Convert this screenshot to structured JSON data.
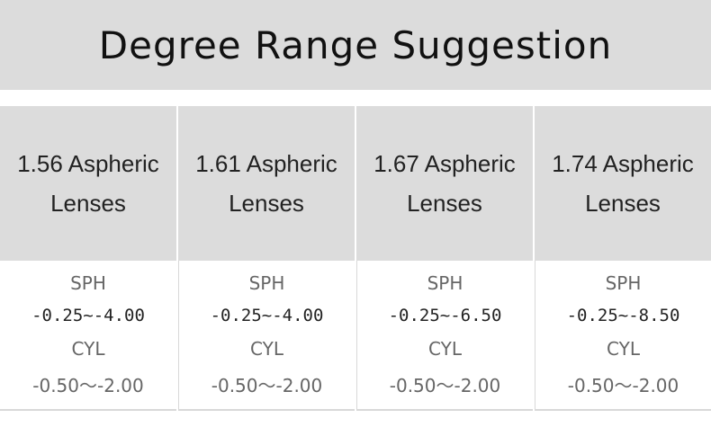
{
  "title": "Degree Range Suggestion",
  "table": {
    "headers": [
      "1.56 Aspheric Lenses",
      "1.61 Aspheric Lenses",
      "1.67 Aspheric Lenses",
      "1.74 Aspheric Lenses"
    ],
    "rows": [
      [
        "SPH",
        "SPH",
        "SPH",
        "SPH"
      ],
      [
        "-0.25~-4.00",
        "-0.25~-4.00",
        "-0.25~-6.50",
        "-0.25~-8.50"
      ],
      [
        "CYL",
        "CYL",
        "CYL",
        "CYL"
      ],
      [
        "-0.50～-2.00",
        "-0.50～-2.00",
        "-0.50～-2.00",
        "-0.50～-2.00"
      ]
    ]
  }
}
